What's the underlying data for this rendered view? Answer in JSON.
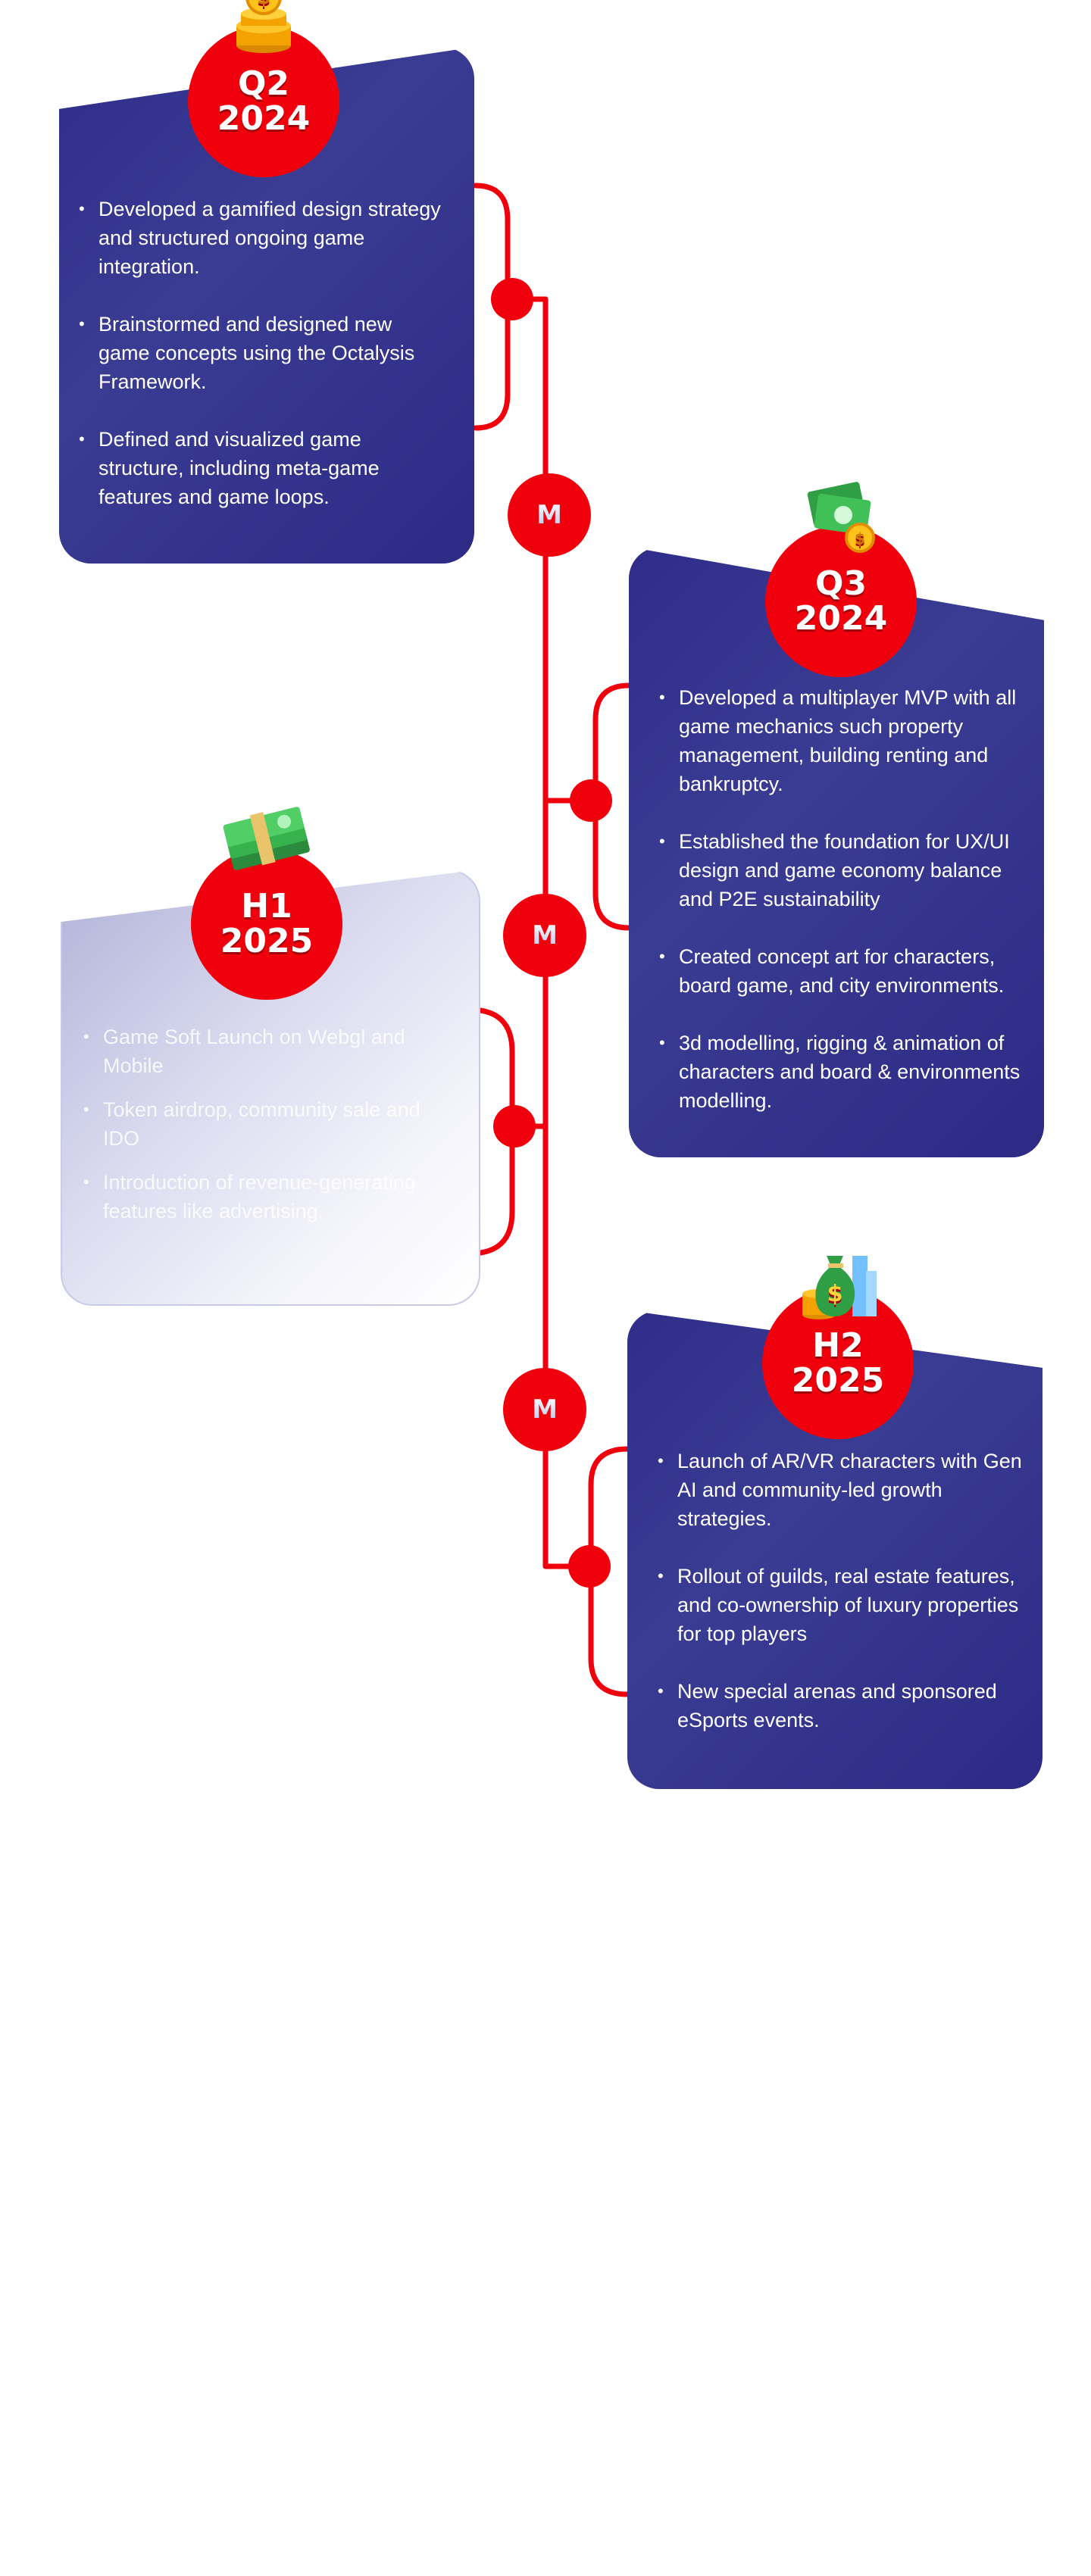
{
  "colors": {
    "accent_red": "#f0000c",
    "card_navy": "#2f2d8a",
    "card_faded": "#d8d9ee",
    "text_white": "#ffffff"
  },
  "milestones": [
    {
      "period": "Q2",
      "year": "2024",
      "icon": "coin-stack-icon",
      "state": "completed",
      "items": [
        "Developed a gamified design strategy and structured ongoing game integration.",
        "Brainstormed and designed new game concepts using the Octalysis Framework.",
        "Defined and visualized game structure, including meta-game features and game loops."
      ]
    },
    {
      "period": "Q3",
      "year": "2024",
      "icon": "cash-and-coins-icon",
      "state": "completed",
      "items": [
        "Developed a multiplayer MVP with all game mechanics such property management, building renting and bankruptcy.",
        "Established the foundation for UX/UI design and game economy balance and P2E sustainability",
        "Created concept art for characters, board game, and city environments.",
        "3d modelling, rigging & animation of characters and board & environments modelling."
      ]
    },
    {
      "period": "H1",
      "year": "2025",
      "icon": "money-stack-icon",
      "state": "upcoming",
      "items": [
        "Game Soft Launch on Webgl and Mobile",
        "Token airdrop, community sale and IDO",
        "Introduction of revenue-generating features like advertising."
      ]
    },
    {
      "period": "H2",
      "year": "2025",
      "icon": "money-bag-icon",
      "state": "upcoming",
      "items": [
        "Launch of AR/VR characters with Gen AI and community-led growth strategies.",
        "Rollout of guilds, real estate features, and co-ownership of luxury properties for top players",
        "New special arenas and sponsored eSports events."
      ]
    }
  ],
  "timeline_nodes": [
    {
      "label": "M"
    },
    {
      "label": "M"
    },
    {
      "label": "M"
    }
  ]
}
